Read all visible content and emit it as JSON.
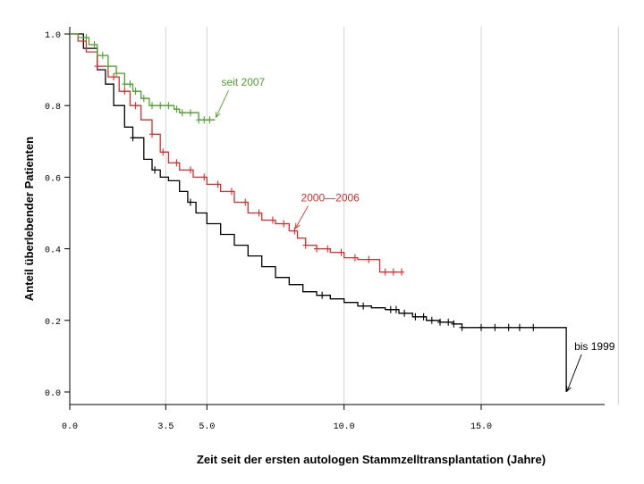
{
  "chart_data": {
    "type": "line",
    "title": "",
    "xlabel": "Zeit seit der ersten autologen Stammzelltransplantation (Jahre)",
    "ylabel": "Anteil überlebender Patienten",
    "xlim": [
      0,
      19.5
    ],
    "ylim": [
      -0.035,
      1.02
    ],
    "x_ticks": [
      {
        "value": 0,
        "label": "0.0"
      },
      {
        "value": 3.5,
        "label": "3.5"
      },
      {
        "value": 5,
        "label": "5.0"
      },
      {
        "value": 10,
        "label": "10.0"
      },
      {
        "value": 15,
        "label": "15.0"
      }
    ],
    "y_ticks": [
      {
        "value": 0,
        "label": "0.0"
      },
      {
        "value": 0.2,
        "label": "0.2"
      },
      {
        "value": 0.4,
        "label": "0.4"
      },
      {
        "value": 0.6,
        "label": "0.6"
      },
      {
        "value": 0.8,
        "label": "0.8"
      },
      {
        "value": 1.0,
        "label": "1.0"
      }
    ],
    "grid": {
      "vertical_lines_at": [
        3.5,
        5,
        10,
        15,
        20
      ],
      "horizontal": false
    },
    "series": [
      {
        "name": "bis 1999",
        "color": "#000000",
        "x": [
          0,
          0.5,
          1,
          1.3,
          1.6,
          2,
          2.3,
          2.7,
          3,
          3.3,
          3.6,
          4,
          4.3,
          4.6,
          5,
          5.5,
          6,
          6.5,
          7,
          7.5,
          8,
          8.5,
          9,
          9.5,
          10,
          10.5,
          11,
          11.5,
          12,
          12.5,
          13,
          13.5,
          14,
          14.3,
          15,
          16,
          17,
          18.1,
          18.1
        ],
        "y": [
          1.0,
          0.96,
          0.9,
          0.86,
          0.8,
          0.74,
          0.71,
          0.65,
          0.62,
          0.6,
          0.59,
          0.56,
          0.53,
          0.5,
          0.47,
          0.44,
          0.41,
          0.38,
          0.35,
          0.32,
          0.3,
          0.28,
          0.27,
          0.26,
          0.25,
          0.24,
          0.235,
          0.23,
          0.22,
          0.21,
          0.2,
          0.195,
          0.19,
          0.18,
          0.18,
          0.18,
          0.18,
          0.18,
          0.0
        ],
        "censor_x": [
          2.3,
          3.1,
          4.4,
          9.2,
          10.7,
          11.7,
          11.9,
          12.2,
          12.6,
          12.9,
          13.2,
          13.5,
          13.8,
          14.0,
          14.3,
          15.0,
          15.5,
          16.0,
          16.4,
          16.9
        ]
      },
      {
        "name": "2000—2006",
        "color": "#e32b2b",
        "x": [
          0,
          0.3,
          0.6,
          1,
          1.4,
          1.8,
          2.2,
          2.6,
          3,
          3.3,
          3.6,
          4,
          4.5,
          5,
          5.5,
          6,
          6.5,
          7,
          7.5,
          8,
          8.3,
          8.6,
          9,
          9.5,
          10,
          10.5,
          11,
          11.3,
          11.3,
          12.1
        ],
        "y": [
          1.0,
          0.98,
          0.95,
          0.91,
          0.88,
          0.84,
          0.8,
          0.76,
          0.72,
          0.67,
          0.64,
          0.62,
          0.6,
          0.58,
          0.56,
          0.53,
          0.5,
          0.48,
          0.47,
          0.45,
          0.43,
          0.41,
          0.4,
          0.39,
          0.375,
          0.37,
          0.37,
          0.37,
          0.335,
          0.335
        ],
        "censor_x": [
          1.0,
          1.6,
          2.0,
          2.4,
          3.0,
          3.4,
          3.9,
          4.4,
          4.9,
          5.4,
          5.9,
          6.4,
          6.9,
          7.4,
          7.8,
          8.2,
          8.6,
          9.0,
          9.4,
          9.9,
          10.4,
          10.9,
          11.5,
          11.8,
          12.1
        ]
      },
      {
        "name": "seit 2007",
        "color": "#4da32a",
        "x": [
          0,
          0.3,
          0.7,
          1,
          1.4,
          1.7,
          2,
          2.3,
          2.6,
          2.9,
          3.2,
          3.5,
          3.8,
          4,
          4.3,
          4.6,
          4.7,
          5.3
        ],
        "y": [
          1.0,
          0.99,
          0.97,
          0.94,
          0.91,
          0.89,
          0.86,
          0.84,
          0.82,
          0.8,
          0.8,
          0.8,
          0.79,
          0.78,
          0.78,
          0.78,
          0.76,
          0.76
        ],
        "censor_x": [
          0.6,
          0.9,
          1.2,
          1.4,
          1.7,
          2.0,
          2.2,
          2.4,
          2.7,
          3.0,
          3.3,
          3.6,
          3.9,
          4.1,
          4.4,
          4.7,
          4.9,
          5.1
        ]
      }
    ],
    "annotations": [
      {
        "text": "seit 2007",
        "color": "#4da32a",
        "series": 2
      },
      {
        "text": "2000—2006",
        "color": "#e32b2b",
        "series": 1
      },
      {
        "text": "bis 1999",
        "color": "#000000",
        "series": 0
      }
    ]
  }
}
